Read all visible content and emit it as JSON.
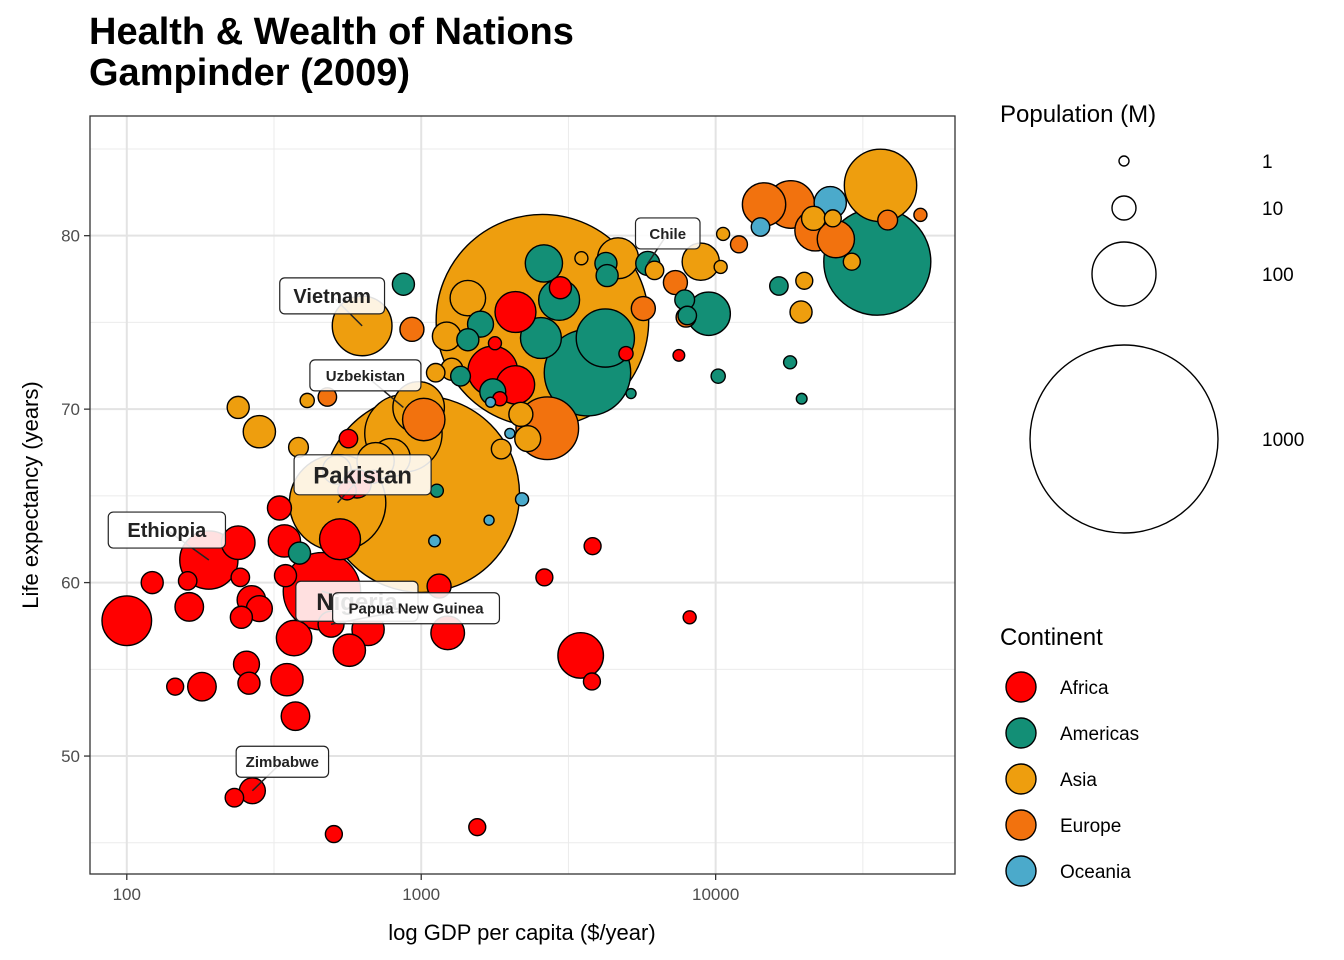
{
  "chart_data": {
    "type": "scatter",
    "title": "Health & Wealth of Nations",
    "subtitle": "Gampinder (2009)",
    "xlabel": "log GDP per capita ($/year)",
    "ylabel": "Life expectancy (years)",
    "x_scale": "log10",
    "xlim": [
      75,
      65000
    ],
    "ylim": [
      43.2,
      86.9
    ],
    "x_ticks": [
      100,
      1000,
      10000
    ],
    "x_tick_labels": [
      "100",
      "1000",
      "10000"
    ],
    "y_ticks": [
      50,
      60,
      70,
      80
    ],
    "y_tick_labels": [
      "50",
      "60",
      "70",
      "80"
    ],
    "grid": true,
    "size_legend": {
      "title": "Population (M)",
      "values": [
        1,
        10,
        100,
        1000
      ],
      "labels": [
        "1",
        "10",
        "100",
        "1000"
      ],
      "placement": "right-top"
    },
    "color_legend": {
      "title": "Continent",
      "placement": "right-bottom",
      "entries": [
        {
          "name": "Africa",
          "color": "#FF0000"
        },
        {
          "name": "Americas",
          "color": "#138F76"
        },
        {
          "name": "Asia",
          "color": "#EE9E0E"
        },
        {
          "name": "Europe",
          "color": "#F2720E"
        },
        {
          "name": "Oceania",
          "color": "#4BAACB"
        }
      ]
    },
    "point_fields": [
      "gdp",
      "life",
      "pop_millions",
      "continent"
    ],
    "points": [
      [
        2580,
        75.1,
        1300,
        "Asia"
      ],
      [
        1000,
        65.1,
        1100,
        "Asia"
      ],
      [
        520,
        64.6,
        240,
        "Asia"
      ],
      [
        870,
        68.6,
        150,
        "Asia"
      ],
      [
        3670,
        72.1,
        190,
        "Americas"
      ],
      [
        35400,
        78.5,
        300,
        "Americas"
      ],
      [
        36300,
        82.9,
        130,
        "Asia"
      ],
      [
        2680,
        68.9,
        95,
        "Europe"
      ],
      [
        4220,
        74.1,
        80,
        "Americas"
      ],
      [
        630,
        74.8,
        85,
        "Asia"
      ],
      [
        460,
        59.5,
        150,
        "Africa"
      ],
      [
        190,
        61.3,
        80,
        "Africa"
      ],
      [
        100,
        57.8,
        55,
        "Africa"
      ],
      [
        980,
        70.1,
        60,
        "Asia"
      ],
      [
        700,
        67.0,
        28,
        "Asia"
      ],
      [
        1020,
        69.4,
        38,
        "Europe"
      ],
      [
        3480,
        55.8,
        45,
        "Africa"
      ],
      [
        1750,
        72.2,
        55,
        "Africa"
      ],
      [
        14600,
        81.8,
        40,
        "Europe"
      ],
      [
        18000,
        81.8,
        50,
        "Europe"
      ],
      [
        21800,
        80.3,
        35,
        "Europe"
      ],
      [
        25600,
        79.8,
        28,
        "Europe"
      ],
      [
        9470,
        75.5,
        40,
        "Americas"
      ],
      [
        2550,
        74.1,
        35,
        "Americas"
      ],
      [
        2940,
        76.3,
        35,
        "Americas"
      ],
      [
        2610,
        78.4,
        28,
        "Americas"
      ],
      [
        4660,
        78.7,
        35,
        "Asia"
      ],
      [
        8900,
        78.5,
        28,
        "Asia"
      ],
      [
        2090,
        75.6,
        35,
        "Africa"
      ],
      [
        2090,
        71.4,
        30,
        "Africa"
      ],
      [
        530,
        62.5,
        35,
        "Africa"
      ],
      [
        790,
        67.2,
        30,
        "Asia"
      ],
      [
        1440,
        76.4,
        25,
        "Asia"
      ],
      [
        24500,
        81.9,
        20,
        "Oceania"
      ],
      [
        370,
        56.8,
        25,
        "Africa"
      ],
      [
        1230,
        57.1,
        22,
        "Africa"
      ],
      [
        239,
        62.3,
        22,
        "Africa"
      ],
      [
        343,
        62.4,
        20,
        "Africa"
      ],
      [
        660,
        57.3,
        20,
        "Africa"
      ],
      [
        570,
        56.1,
        20,
        "Africa"
      ],
      [
        350,
        54.4,
        20,
        "Africa"
      ],
      [
        282,
        68.7,
        20,
        "Asia"
      ],
      [
        1590,
        74.9,
        12,
        "Americas"
      ],
      [
        1220,
        74.2,
        15,
        "Asia"
      ],
      [
        517,
        66.5,
        15,
        "Asia"
      ],
      [
        605,
        65.7,
        15,
        "Africa"
      ],
      [
        163,
        58.6,
        15,
        "Africa"
      ],
      [
        265,
        59.0,
        15,
        "Africa"
      ],
      [
        180,
        54.0,
        15,
        "Africa"
      ],
      [
        374,
        52.3,
        15,
        "Africa"
      ],
      [
        494,
        57.6,
        12,
        "Africa"
      ],
      [
        255,
        55.3,
        12,
        "Africa"
      ],
      [
        267,
        48.0,
        12,
        "Africa"
      ],
      [
        282,
        58.5,
        12,
        "Africa"
      ],
      [
        2180,
        69.7,
        10,
        "Asia"
      ],
      [
        2300,
        68.3,
        12,
        "Asia"
      ],
      [
        1750,
        71.0,
        12,
        "Americas"
      ],
      [
        330,
        64.3,
        10,
        "Africa"
      ],
      [
        1150,
        59.8,
        10,
        "Africa"
      ],
      [
        930,
        74.6,
        10,
        "Europe"
      ],
      [
        5680,
        75.8,
        10,
        "Europe"
      ],
      [
        7300,
        77.3,
        10,
        "Europe"
      ],
      [
        5880,
        78.4,
        10,
        "Americas"
      ],
      [
        21500,
        81.0,
        10,
        "Asia"
      ],
      [
        870,
        77.2,
        8,
        "Americas"
      ],
      [
        1440,
        74.0,
        8,
        "Americas"
      ],
      [
        4240,
        78.4,
        8,
        "Americas"
      ],
      [
        4280,
        77.7,
        8,
        "Americas"
      ],
      [
        239,
        70.1,
        8,
        "Asia"
      ],
      [
        1270,
        72.3,
        8,
        "Asia"
      ],
      [
        19500,
        75.6,
        8,
        "Asia"
      ],
      [
        122,
        60.0,
        8,
        "Africa"
      ],
      [
        245,
        58.0,
        8,
        "Africa"
      ],
      [
        346,
        60.4,
        8,
        "Africa"
      ],
      [
        260,
        54.2,
        8,
        "Africa"
      ],
      [
        2970,
        77.0,
        8,
        "Africa"
      ],
      [
        386,
        61.7,
        8,
        "Americas"
      ],
      [
        1360,
        71.9,
        6,
        "Americas"
      ],
      [
        7930,
        75.3,
        6,
        "Europe"
      ],
      [
        7850,
        76.3,
        6,
        "Americas"
      ],
      [
        38400,
        80.9,
        6,
        "Europe"
      ],
      [
        1870,
        67.7,
        6,
        "Asia"
      ],
      [
        383,
        67.8,
        6,
        "Asia"
      ],
      [
        8010,
        75.4,
        5,
        "Americas"
      ],
      [
        16400,
        77.1,
        5,
        "Americas"
      ],
      [
        6200,
        78.0,
        5,
        "Asia"
      ],
      [
        1120,
        72.1,
        5,
        "Asia"
      ],
      [
        14200,
        80.5,
        5,
        "Oceania"
      ],
      [
        480,
        70.7,
        5,
        "Europe"
      ],
      [
        161,
        60.1,
        5,
        "Africa"
      ],
      [
        243,
        60.3,
        5,
        "Africa"
      ],
      [
        560,
        65.3,
        5,
        "Africa"
      ],
      [
        566,
        68.3,
        5,
        "Africa"
      ],
      [
        232,
        47.6,
        5,
        "Africa"
      ],
      [
        146,
        54.0,
        4,
        "Africa"
      ],
      [
        505,
        45.5,
        4,
        "Africa"
      ],
      [
        1550,
        45.9,
        4,
        "Africa"
      ],
      [
        3800,
        54.3,
        4,
        "Africa"
      ],
      [
        2620,
        60.3,
        4,
        "Africa"
      ],
      [
        3820,
        62.1,
        4,
        "Africa"
      ],
      [
        12000,
        79.5,
        4,
        "Europe"
      ],
      [
        20000,
        77.4,
        4,
        "Asia"
      ],
      [
        25000,
        81.0,
        4,
        "Asia"
      ],
      [
        29000,
        78.5,
        4,
        "Asia"
      ],
      [
        1780,
        73.8,
        2,
        "Africa"
      ],
      [
        1850,
        70.6,
        2.5,
        "Africa"
      ],
      [
        4960,
        73.2,
        2.5,
        "Africa"
      ],
      [
        8160,
        58.0,
        2,
        "Africa"
      ],
      [
        7500,
        73.1,
        1.5,
        "Africa"
      ],
      [
        10200,
        71.9,
        2.5,
        "Americas"
      ],
      [
        17900,
        72.7,
        2,
        "Americas"
      ],
      [
        19600,
        70.6,
        1.2,
        "Americas"
      ],
      [
        5160,
        70.9,
        1,
        "Americas"
      ],
      [
        1130,
        65.3,
        2,
        "Americas"
      ],
      [
        690,
        66.1,
        2,
        "Africa"
      ],
      [
        410,
        70.5,
        2.5,
        "Asia"
      ],
      [
        3500,
        78.7,
        2,
        "Asia"
      ],
      [
        10600,
        80.1,
        2,
        "Asia"
      ],
      [
        10400,
        78.2,
        2,
        "Asia"
      ],
      [
        49600,
        81.2,
        2,
        "Europe"
      ],
      [
        2200,
        64.8,
        2,
        "Oceania"
      ],
      [
        2000,
        68.6,
        1,
        "Oceania"
      ],
      [
        1700,
        63.6,
        1,
        "Oceania"
      ],
      [
        1110,
        62.4,
        1.5,
        "Oceania"
      ],
      [
        1720,
        70.4,
        1,
        "Oceania"
      ]
    ],
    "annotations": [
      {
        "label": "Vietnam",
        "gdp": 630,
        "life": 74.8,
        "size": "large"
      },
      {
        "label": "Uzbekistan",
        "gdp": 870,
        "life": 70.1,
        "size": "small"
      },
      {
        "label": "Chile",
        "gdp": 5880,
        "life": 78.4,
        "size": "small"
      },
      {
        "label": "Ethiopia",
        "gdp": 190,
        "life": 61.3,
        "size": "large"
      },
      {
        "label": "Pakistan",
        "gdp": 520,
        "life": 64.6,
        "size": "xlarge"
      },
      {
        "label": "Nigeria",
        "gdp": 460,
        "life": 59.5,
        "size": "xlarge"
      },
      {
        "label": "Papua New Guinea",
        "gdp": 494,
        "life": 57.6,
        "size": "small"
      },
      {
        "label": "Zimbabwe",
        "gdp": 267,
        "life": 48.0,
        "size": "small"
      }
    ]
  }
}
